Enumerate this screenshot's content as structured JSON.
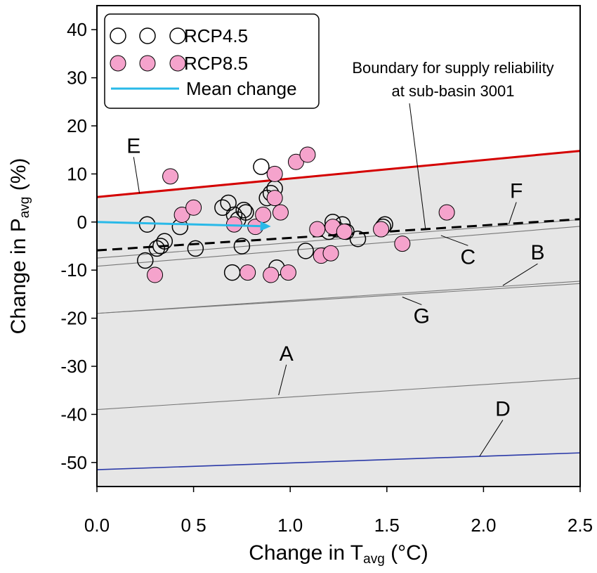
{
  "chart_data": {
    "type": "scatter",
    "xlim": [
      0,
      2.5
    ],
    "ylim": [
      -55,
      45
    ],
    "x_ticks": [
      0.0,
      0.5,
      1.0,
      1.5,
      2.0,
      2.5
    ],
    "x_tick_labels": [
      "0.0",
      "0 5",
      "1.0",
      "1.5",
      "2.0",
      "2.5"
    ],
    "y_ticks": [
      40,
      30,
      20,
      10,
      0,
      -10,
      -20,
      -30,
      -40,
      -50
    ],
    "y_tick_labels": [
      "40",
      "30",
      "20",
      "10",
      "0",
      "-10",
      "-20",
      "-30",
      "-40",
      "-50"
    ],
    "xlabel": {
      "main": "Change in T",
      "sub": "avg",
      "tail": " (°C)"
    },
    "ylabel": {
      "main": "Change in P",
      "sub": "avg",
      "tail": " (%)"
    },
    "grid": false,
    "legend_position": "top-left",
    "legend": [
      {
        "label": "RCP4.5",
        "marker": "open-circle"
      },
      {
        "label": "RCP8.5",
        "marker": "pink-circle"
      },
      {
        "label": "Mean change",
        "marker": "line"
      }
    ],
    "annotation": {
      "lines": [
        "Boundary for supply reliability",
        "at sub-basin 3001"
      ],
      "points_to": [
        1.7,
        -1.5
      ]
    },
    "colors": {
      "rcp45_stroke": "#000000",
      "rcp85_fill": "#f5a3cc",
      "mean_change": "#29b9e8",
      "E": "#d40000",
      "D": "#2b3aa8",
      "thin": "#777777",
      "shade": "#e6e6e6"
    },
    "curves": [
      {
        "name": "E",
        "x": [
          0,
          2.5
        ],
        "y": [
          5.2,
          14.8
        ]
      },
      {
        "name": "F",
        "x": [
          0,
          2.5
        ],
        "y": [
          -7.5,
          0.5
        ]
      },
      {
        "name": "C",
        "x": [
          0,
          2.5
        ],
        "y": [
          -9.2,
          -0.9
        ]
      },
      {
        "name": "B",
        "x": [
          0,
          2.5
        ],
        "y": [
          -19.0,
          -12.3
        ]
      },
      {
        "name": "G",
        "x": [
          0,
          2.5
        ],
        "y": [
          -19.0,
          -12.8
        ]
      },
      {
        "name": "A",
        "x": [
          0,
          2.5
        ],
        "y": [
          -39.0,
          -32.5
        ]
      },
      {
        "name": "D",
        "x": [
          0,
          2.5
        ],
        "y": [
          -51.5,
          -48.0
        ]
      }
    ],
    "boundary": {
      "x": [
        0,
        2.5
      ],
      "y": [
        -5.9,
        0.6
      ]
    },
    "mean_change": {
      "from": [
        0,
        0
      ],
      "to": [
        0.9,
        -0.9
      ]
    },
    "curve_labels": [
      {
        "text": "E",
        "x": 0.19,
        "y": 14.4,
        "leader_to": [
          0.22,
          6.0
        ]
      },
      {
        "text": "F",
        "x": 2.17,
        "y": 5.0,
        "leader_to": [
          2.13,
          -0.5
        ]
      },
      {
        "text": "C",
        "x": 1.92,
        "y": -8.7,
        "leader_to": [
          1.78,
          -2.8
        ]
      },
      {
        "text": "B",
        "x": 2.28,
        "y": -7.8,
        "leader_to": [
          2.1,
          -13.2
        ]
      },
      {
        "text": "G",
        "x": 1.68,
        "y": -21.0,
        "leader_to": [
          1.58,
          -15.6
        ]
      },
      {
        "text": "A",
        "x": 0.98,
        "y": -28.8,
        "leader_to": [
          0.94,
          -36.0
        ]
      },
      {
        "text": "D",
        "x": 2.1,
        "y": -40.3,
        "leader_to": [
          1.98,
          -48.7
        ]
      }
    ],
    "series": [
      {
        "name": "RCP4.5",
        "x": [
          0.25,
          0.26,
          0.31,
          0.33,
          0.35,
          0.43,
          0.51,
          0.65,
          0.68,
          0.7,
          0.71,
          0.73,
          0.75,
          0.76,
          0.77,
          0.85,
          0.88,
          0.9,
          0.92,
          0.93,
          1.08,
          1.2,
          1.22,
          1.24,
          1.27,
          1.29,
          1.35,
          1.48,
          1.49
        ],
        "y": [
          -8.0,
          -0.5,
          -5.5,
          -5.0,
          -4.0,
          -1.0,
          -5.5,
          3.0,
          4.0,
          -10.5,
          1.5,
          0.5,
          -5.0,
          2.5,
          2.0,
          11.5,
          5.0,
          6.0,
          7.0,
          -9.5,
          -6.0,
          -2.0,
          0.0,
          -1.5,
          -0.5,
          -2.0,
          -3.5,
          -1.0,
          -0.5
        ]
      },
      {
        "name": "RCP8.5",
        "x": [
          0.3,
          0.38,
          0.44,
          0.5,
          0.71,
          0.78,
          0.82,
          0.86,
          0.9,
          0.92,
          0.92,
          0.95,
          0.99,
          1.03,
          1.09,
          1.14,
          1.16,
          1.21,
          1.22,
          1.28,
          1.47,
          1.58,
          1.81
        ],
        "y": [
          -11.0,
          9.5,
          1.5,
          3.0,
          -0.5,
          -10.5,
          -1.0,
          1.5,
          -11.0,
          5.0,
          10.0,
          2.0,
          -10.5,
          12.5,
          14.0,
          -1.5,
          -7.0,
          -6.5,
          -1.0,
          -2.0,
          -1.5,
          -4.5,
          2.0
        ]
      }
    ]
  }
}
